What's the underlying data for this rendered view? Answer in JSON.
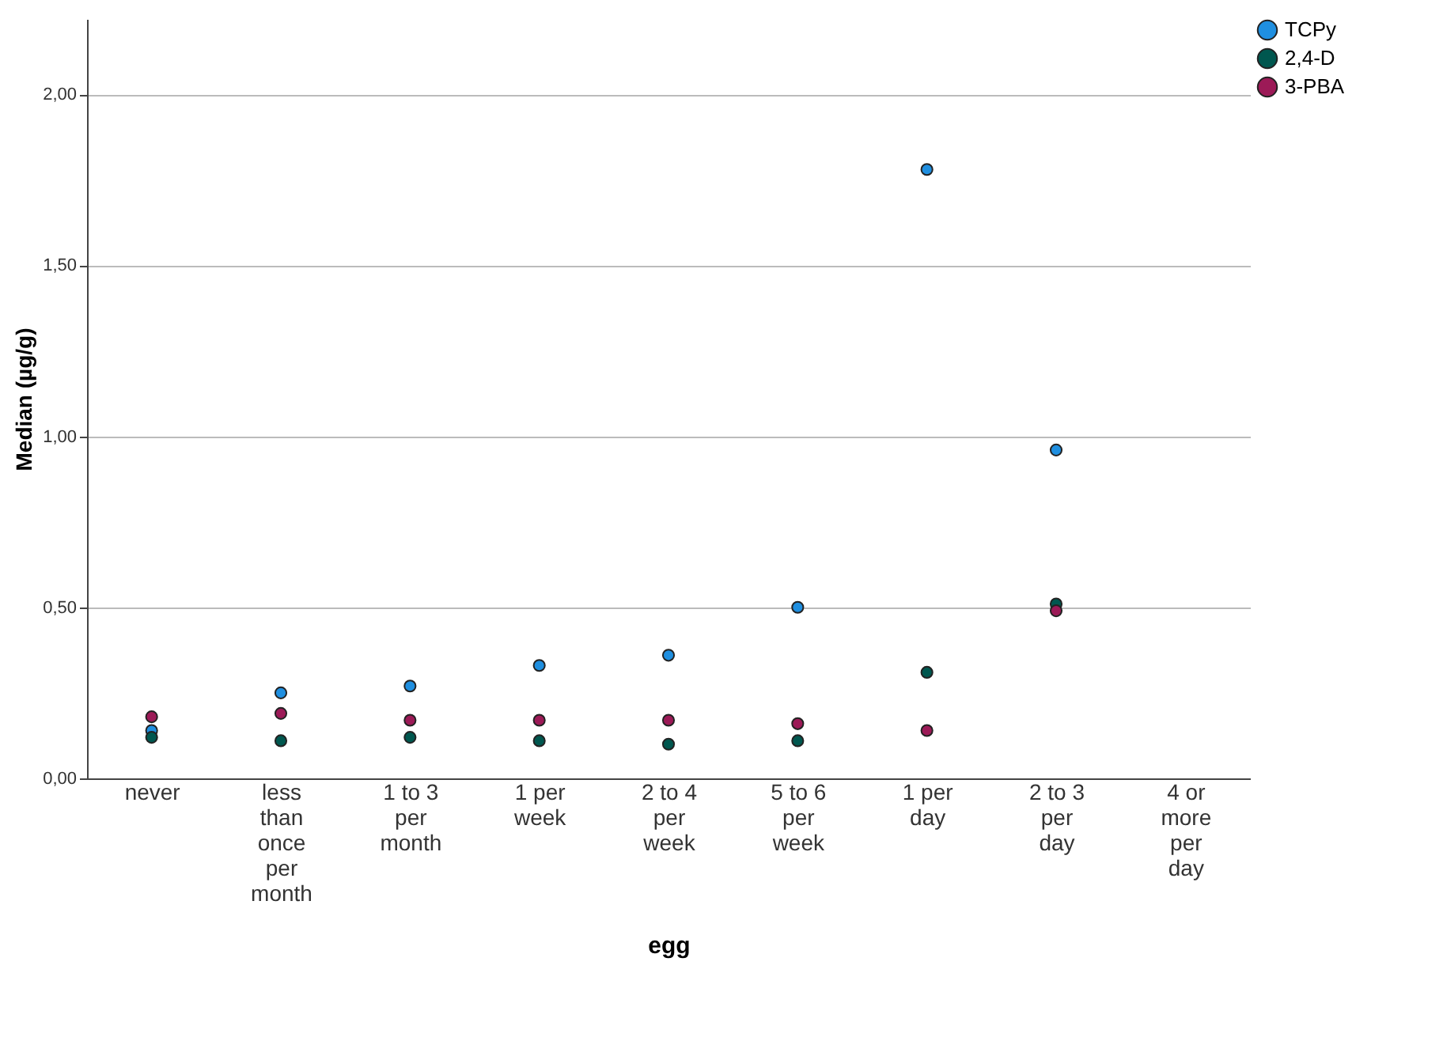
{
  "chart_data": {
    "type": "scatter",
    "xlabel": "egg",
    "ylabel": "Median (µg/g)",
    "categories": [
      "never",
      "less than once per month",
      "1 to 3 per month",
      "1 per week",
      "2 to 4 per week",
      "5 to 6 per week",
      "1 per day",
      "2 to 3 per day",
      "4 or more per day"
    ],
    "series": [
      {
        "name": "TCPy",
        "color": "#1f8fe0",
        "values": [
          0.14,
          0.25,
          0.27,
          0.33,
          0.36,
          0.5,
          1.78,
          0.96,
          null
        ]
      },
      {
        "name": "2,4-D",
        "color": "#00574f",
        "values": [
          0.12,
          0.11,
          0.12,
          0.11,
          0.1,
          0.11,
          0.31,
          0.51,
          null
        ]
      },
      {
        "name": "3-PBA",
        "color": "#9c1a57",
        "values": [
          0.18,
          0.19,
          0.17,
          0.17,
          0.17,
          0.16,
          0.14,
          0.49,
          null
        ]
      }
    ],
    "ylim": [
      0,
      2.22
    ],
    "yticks": [
      {
        "value": 0,
        "label": "0,00"
      },
      {
        "value": 0.5,
        "label": "0,50"
      },
      {
        "value": 1,
        "label": "1,00"
      },
      {
        "value": 1.5,
        "label": "1,50"
      },
      {
        "value": 2,
        "label": "2,00"
      }
    ],
    "grid": "y",
    "legend": "top right",
    "marker": "circle"
  }
}
